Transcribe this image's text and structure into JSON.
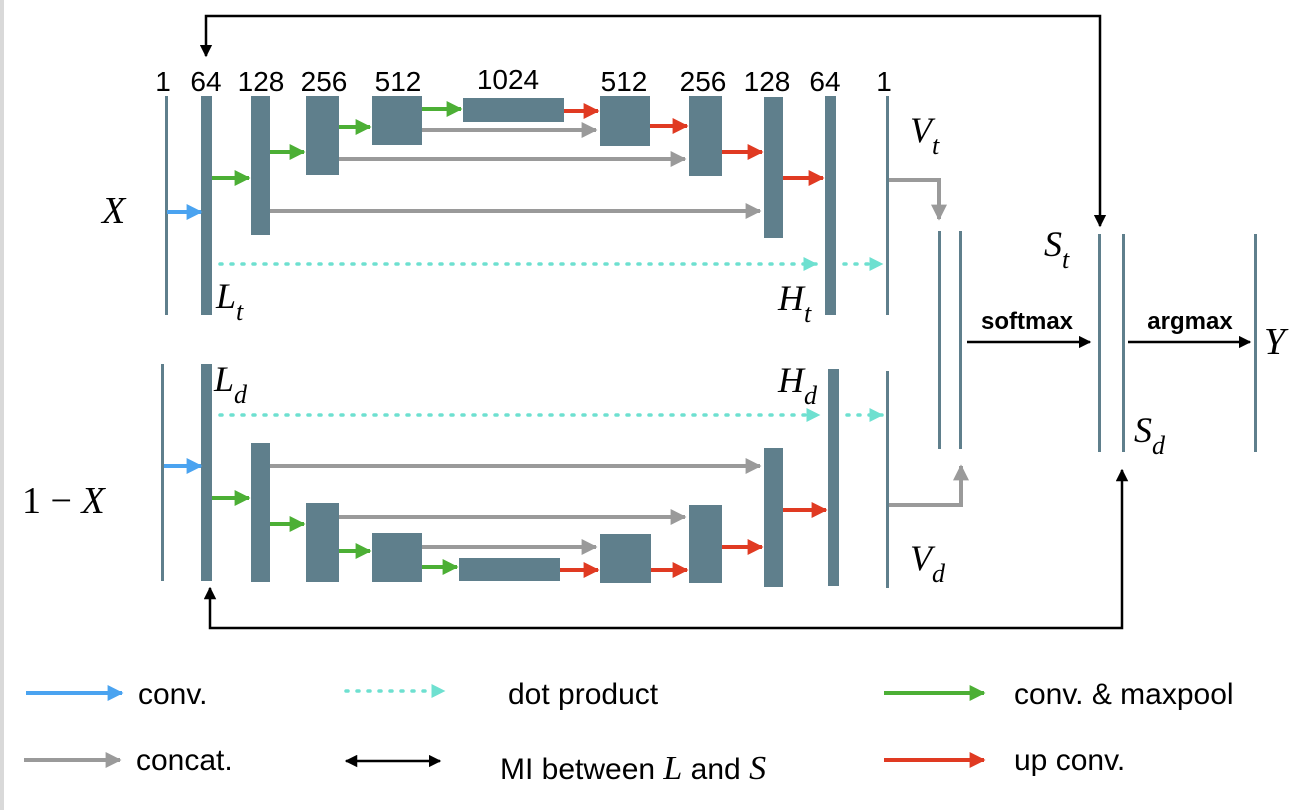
{
  "colors": {
    "block": "#5f7f8c",
    "line": "#5f7f8c",
    "conv": "#4aa3f0",
    "concat": "#9a9a9a",
    "dot": "#6ee0d0",
    "mi": "#000000",
    "maxpool": "#4caf35",
    "upconv": "#e03a22"
  },
  "channels": {
    "c1": "1",
    "c64": "64",
    "c128": "128",
    "c256": "256",
    "c512": "512",
    "c1024": "1024",
    "d512": "512",
    "d256": "256",
    "d128": "128",
    "d64": "64",
    "d1": "1"
  },
  "labels": {
    "x": "X",
    "one_minus": "1 − ",
    "x2": "X",
    "lt_main": "L",
    "lt_sub": "t",
    "ld_main": "L",
    "ld_sub": "d",
    "ht_main": "H",
    "ht_sub": "t",
    "hd_main": "H",
    "hd_sub": "d",
    "vt_main": "V",
    "vt_sub": "t",
    "vd_main": "V",
    "vd_sub": "d",
    "st_main": "S",
    "st_sub": "t",
    "sd_main": "S",
    "sd_sub": "d",
    "y": "Y",
    "softmax": "softmax",
    "argmax": "argmax"
  },
  "legend": {
    "conv": "conv.",
    "concat": "concat.",
    "dot_product": "dot product",
    "mi_prefix": "MI between ",
    "mi_l": "L",
    "mi_and": " and ",
    "mi_s": "S",
    "maxpool": "conv. & maxpool",
    "upconv": "up conv."
  }
}
